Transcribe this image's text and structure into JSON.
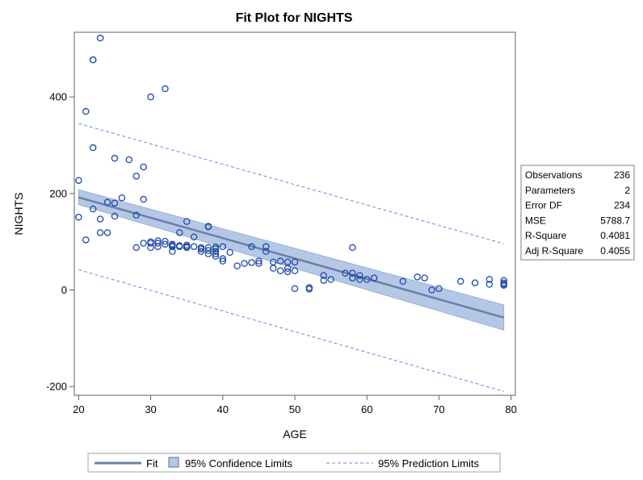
{
  "chart_data": {
    "type": "scatter",
    "title": "Fit Plot for NIGHTS",
    "xlabel": "AGE",
    "ylabel": "NIGHTS",
    "xlim": [
      19.4,
      80.6
    ],
    "ylim": [
      -218,
      534
    ],
    "xticks": [
      20,
      30,
      40,
      50,
      60,
      70,
      80
    ],
    "yticks": [
      -200,
      0,
      200,
      400
    ],
    "grid": false,
    "fit": {
      "name": "Fit",
      "x": [
        20,
        79
      ],
      "y": [
        192,
        -57
      ]
    },
    "confidence_band": {
      "name": "95% Confidence Limits",
      "x": [
        20,
        79
      ],
      "lower": [
        177,
        -83
      ],
      "upper": [
        208,
        -31
      ]
    },
    "prediction_limits": {
      "name": "95% Prediction Limits",
      "x": [
        20,
        79
      ],
      "lower": [
        42,
        -210
      ],
      "upper": [
        345,
        96
      ]
    },
    "points": {
      "x": [
        23,
        22,
        22,
        32,
        30,
        21,
        22,
        25,
        27,
        29,
        28,
        20,
        26,
        29,
        24,
        25,
        22,
        20,
        25,
        28,
        23,
        21,
        23,
        24,
        35,
        38,
        38,
        34,
        36,
        29,
        30,
        30,
        31,
        31,
        32,
        32,
        33,
        33,
        33,
        34,
        34,
        35,
        35,
        36,
        37,
        37,
        38,
        38,
        39,
        39,
        39,
        40,
        28,
        30,
        31,
        33,
        35,
        37,
        38,
        39,
        40,
        40,
        41,
        42,
        43,
        44,
        44,
        45,
        45,
        46,
        46,
        47,
        47,
        48,
        48,
        49,
        49,
        49,
        50,
        50,
        50,
        52,
        52,
        54,
        54,
        55,
        57,
        58,
        58,
        58,
        59,
        59,
        60,
        61,
        65,
        67,
        68,
        69,
        70,
        73,
        75,
        77,
        77,
        79,
        79,
        79,
        79,
        33,
        39
      ],
      "y": [
        522,
        477,
        477,
        417,
        400,
        370,
        295,
        273,
        270,
        255,
        236,
        227,
        191,
        188,
        182,
        180,
        168,
        151,
        153,
        155,
        147,
        104,
        119,
        119,
        142,
        132,
        131,
        119,
        110,
        97,
        100,
        97,
        102,
        97,
        101,
        95,
        93,
        90,
        95,
        92,
        90,
        93,
        90,
        90,
        88,
        85,
        88,
        82,
        89,
        80,
        85,
        90,
        88,
        88,
        90,
        80,
        88,
        80,
        75,
        70,
        65,
        60,
        78,
        50,
        55,
        90,
        57,
        55,
        60,
        90,
        80,
        45,
        58,
        40,
        60,
        45,
        38,
        58,
        40,
        3,
        58,
        2,
        5,
        30,
        20,
        22,
        35,
        35,
        88,
        25,
        30,
        22,
        22,
        25,
        18,
        27,
        25,
        0,
        3,
        18,
        15,
        12,
        22,
        20,
        12,
        15,
        10,
        90,
        75
      ]
    }
  },
  "legend": {
    "fit_label": "Fit",
    "confidence_label": "95% Confidence Limits",
    "prediction_label": "95% Prediction Limits"
  },
  "stats": [
    {
      "label": "Observations",
      "value": "236"
    },
    {
      "label": "Parameters",
      "value": "2"
    },
    {
      "label": "Error DF",
      "value": "234"
    },
    {
      "label": "MSE",
      "value": "5788.7"
    },
    {
      "label": "R-Square",
      "value": "0.4081"
    },
    {
      "label": "Adj R-Square",
      "value": "0.4055"
    }
  ],
  "colors": {
    "marker": "#1f4aa8",
    "fit_line": "#6b7fa6",
    "band_fill": "#b4c8e6",
    "band_edge": "#8ea6d3",
    "prediction": "#6f8ad6"
  }
}
